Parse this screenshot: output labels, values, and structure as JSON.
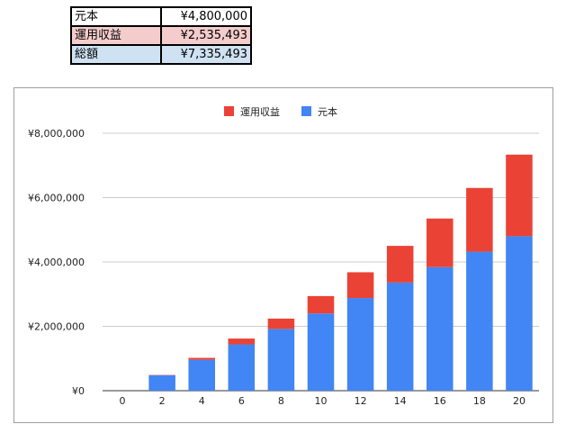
{
  "summary": {
    "rows": [
      {
        "label": "元本",
        "value": "¥4,800,000"
      },
      {
        "label": "運用収益",
        "value": "¥2,535,493"
      },
      {
        "label": "総額",
        "value": "¥7,335,493"
      }
    ]
  },
  "colors": {
    "principal": "#4285f4",
    "returns": "#ea4335",
    "row_principal_bg": "#ffffff",
    "row_returns_bg": "#f4cccc",
    "row_total_bg": "#cfe2f3"
  },
  "chart_data": {
    "type": "bar",
    "stacked": true,
    "categories": [
      "0",
      "2",
      "4",
      "6",
      "8",
      "10",
      "12",
      "14",
      "16",
      "18",
      "20"
    ],
    "series": [
      {
        "name": "元本",
        "color": "#4285f4",
        "values": [
          0,
          480000,
          960000,
          1440000,
          1920000,
          2400000,
          2880000,
          3360000,
          3840000,
          4320000,
          4800000
        ]
      },
      {
        "name": "運用収益",
        "color": "#ea4335",
        "values": [
          0,
          10000,
          60000,
          180000,
          320000,
          540000,
          800000,
          1140000,
          1510000,
          1980000,
          2535493
        ]
      }
    ],
    "legend": [
      "運用収益",
      "元本"
    ],
    "legend_position": "top",
    "ylim": [
      0,
      8000000
    ],
    "yticks": [
      "¥0",
      "¥2,000,000",
      "¥4,000,000",
      "¥6,000,000",
      "¥8,000,000"
    ],
    "grid": true
  }
}
